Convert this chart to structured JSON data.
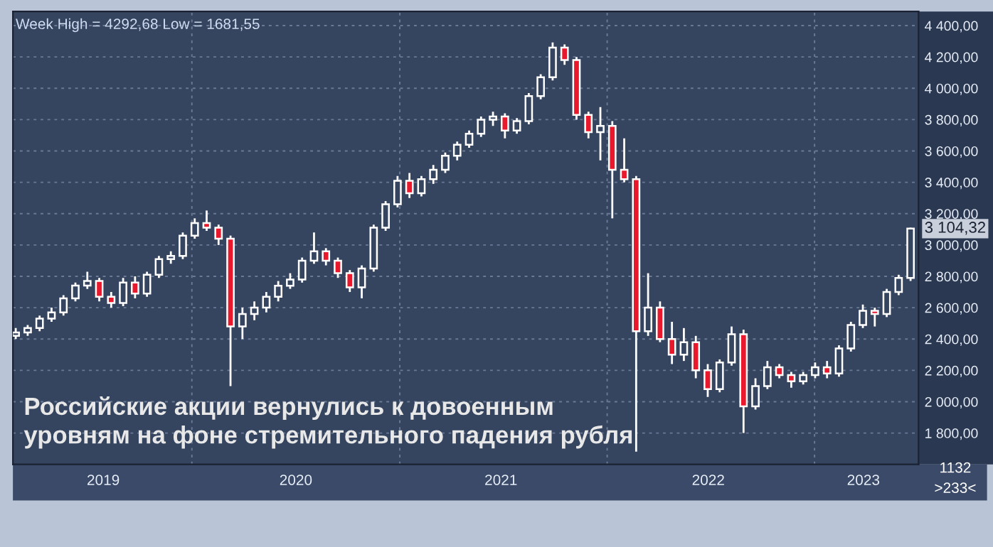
{
  "chart_data": {
    "type": "candlestick",
    "title": "Week High = 4292,68 Low = 1681,55",
    "annotations": [
      "Российские акции вернулись к довоенным уровням на фоне стремительного падения рубля",
      "1132",
      ">233<",
      "3 104,32"
    ],
    "x": [
      "2019-02-25",
      "2019-03-18",
      "2019-04-08",
      "2019-04-29",
      "2019-05-20",
      "2019-06-10",
      "2019-07-01",
      "2019-07-22",
      "2019-08-12",
      "2019-09-02",
      "2019-09-23",
      "2019-10-14",
      "2019-11-04",
      "2019-11-25",
      "2019-12-16",
      "2020-01-06",
      "2020-01-27",
      "2020-02-17",
      "2020-03-09",
      "2020-03-30",
      "2020-04-20",
      "2020-05-11",
      "2020-06-01",
      "2020-06-22",
      "2020-07-13",
      "2020-08-03",
      "2020-08-24",
      "2020-09-14",
      "2020-10-05",
      "2020-10-26",
      "2020-11-16",
      "2020-12-07",
      "2020-12-28",
      "2021-01-18",
      "2021-02-08",
      "2021-03-01",
      "2021-03-22",
      "2021-04-12",
      "2021-05-03",
      "2021-05-24",
      "2021-06-14",
      "2021-07-05",
      "2021-07-26",
      "2021-08-16",
      "2021-09-06",
      "2021-09-27",
      "2021-10-18",
      "2021-11-08",
      "2021-11-29",
      "2021-12-20",
      "2022-01-10",
      "2022-01-31",
      "2022-02-21",
      "2022-03-14",
      "2022-04-04",
      "2022-04-25",
      "2022-05-16",
      "2022-06-06",
      "2022-06-27",
      "2022-07-18",
      "2022-08-08",
      "2022-08-29",
      "2022-09-19",
      "2022-10-10",
      "2022-10-31",
      "2022-11-21",
      "2022-12-12",
      "2023-01-02",
      "2023-01-23",
      "2023-02-13",
      "2023-03-06",
      "2023-03-27",
      "2023-04-17",
      "2023-05-08",
      "2023-05-29",
      "2023-06-19"
    ],
    "ohlc": [
      [
        2420,
        2470,
        2400,
        2442
      ],
      [
        2442,
        2490,
        2420,
        2470
      ],
      [
        2470,
        2550,
        2450,
        2530
      ],
      [
        2530,
        2600,
        2510,
        2570
      ],
      [
        2570,
        2680,
        2550,
        2660
      ],
      [
        2660,
        2760,
        2640,
        2741
      ],
      [
        2741,
        2830,
        2720,
        2770
      ],
      [
        2770,
        2790,
        2640,
        2670
      ],
      [
        2670,
        2700,
        2600,
        2630
      ],
      [
        2630,
        2790,
        2610,
        2760
      ],
      [
        2760,
        2800,
        2660,
        2690
      ],
      [
        2690,
        2830,
        2670,
        2810
      ],
      [
        2810,
        2930,
        2790,
        2910
      ],
      [
        2910,
        2960,
        2880,
        2930
      ],
      [
        2930,
        3080,
        2910,
        3060
      ],
      [
        3060,
        3170,
        3040,
        3140
      ],
      [
        3140,
        3220,
        3090,
        3110
      ],
      [
        3110,
        3130,
        3000,
        3040
      ],
      [
        3040,
        3060,
        2100,
        2480
      ],
      [
        2480,
        2600,
        2400,
        2560
      ],
      [
        2560,
        2640,
        2520,
        2600
      ],
      [
        2600,
        2700,
        2570,
        2670
      ],
      [
        2670,
        2770,
        2640,
        2740
      ],
      [
        2740,
        2820,
        2720,
        2780
      ],
      [
        2780,
        2920,
        2760,
        2900
      ],
      [
        2900,
        3080,
        2880,
        2960
      ],
      [
        2960,
        2980,
        2870,
        2900
      ],
      [
        2900,
        2920,
        2790,
        2820
      ],
      [
        2820,
        2840,
        2700,
        2730
      ],
      [
        2730,
        2870,
        2660,
        2850
      ],
      [
        2850,
        3130,
        2830,
        3110
      ],
      [
        3110,
        3280,
        3090,
        3260
      ],
      [
        3260,
        3440,
        3240,
        3410
      ],
      [
        3410,
        3460,
        3300,
        3330
      ],
      [
        3330,
        3440,
        3310,
        3420
      ],
      [
        3420,
        3510,
        3390,
        3480
      ],
      [
        3480,
        3590,
        3460,
        3570
      ],
      [
        3570,
        3660,
        3540,
        3640
      ],
      [
        3640,
        3730,
        3620,
        3710
      ],
      [
        3710,
        3820,
        3690,
        3800
      ],
      [
        3800,
        3850,
        3760,
        3820
      ],
      [
        3820,
        3840,
        3680,
        3730
      ],
      [
        3730,
        3810,
        3710,
        3790
      ],
      [
        3790,
        3970,
        3770,
        3950
      ],
      [
        3950,
        4090,
        3930,
        4070
      ],
      [
        4070,
        4292.68,
        4050,
        4260
      ],
      [
        4260,
        4280,
        4150,
        4180
      ],
      [
        4180,
        4200,
        3800,
        3830
      ],
      [
        3830,
        3850,
        3680,
        3720
      ],
      [
        3720,
        3880,
        3540,
        3760
      ],
      [
        3760,
        3790,
        3170,
        3480
      ],
      [
        3480,
        3680,
        3400,
        3420
      ],
      [
        3420,
        3440,
        1681.55,
        2450
      ],
      [
        2450,
        2820,
        2420,
        2600
      ],
      [
        2600,
        2640,
        2380,
        2400
      ],
      [
        2400,
        2510,
        2240,
        2300
      ],
      [
        2300,
        2470,
        2260,
        2380
      ],
      [
        2380,
        2420,
        2150,
        2200
      ],
      [
        2200,
        2240,
        2030,
        2080
      ],
      [
        2080,
        2270,
        2060,
        2250
      ],
      [
        2250,
        2480,
        2230,
        2430
      ],
      [
        2430,
        2460,
        1800,
        1970
      ],
      [
        1970,
        2150,
        1950,
        2100
      ],
      [
        2100,
        2260,
        2080,
        2220
      ],
      [
        2220,
        2240,
        2150,
        2170
      ],
      [
        2170,
        2190,
        2090,
        2130
      ],
      [
        2130,
        2190,
        2110,
        2170
      ],
      [
        2170,
        2250,
        2150,
        2220
      ],
      [
        2220,
        2260,
        2150,
        2180
      ],
      [
        2180,
        2360,
        2160,
        2340
      ],
      [
        2340,
        2510,
        2320,
        2490
      ],
      [
        2490,
        2620,
        2470,
        2580
      ],
      [
        2580,
        2600,
        2480,
        2560
      ],
      [
        2560,
        2720,
        2540,
        2700
      ],
      [
        2700,
        2810,
        2680,
        2790
      ],
      [
        2790,
        3110,
        2770,
        3104.32
      ]
    ],
    "xlim": [
      "2019-02-20",
      "2023-07-03"
    ],
    "xticks": [
      {
        "value": "2019-07-29",
        "label": "2019"
      },
      {
        "value": "2020-01-01",
        "label": null
      },
      {
        "value": "2020-07-02",
        "label": "2020"
      },
      {
        "value": "2021-01-01",
        "label": null
      },
      {
        "value": "2021-06-28",
        "label": "2021"
      },
      {
        "value": "2022-01-01",
        "label": null
      },
      {
        "value": "2022-06-28",
        "label": "2022"
      },
      {
        "value": "2023-01-01",
        "label": null
      },
      {
        "value": "2023-03-28",
        "label": "2023"
      }
    ],
    "ylim": [
      1600,
      4490
    ],
    "yticks": [
      {
        "value": 1800,
        "label": "1 800,00"
      },
      {
        "value": 2000,
        "label": "2 000,00"
      },
      {
        "value": 2200,
        "label": "2 200,00"
      },
      {
        "value": 2400,
        "label": "2 400,00"
      },
      {
        "value": 2600,
        "label": "2 600,00"
      },
      {
        "value": 2800,
        "label": "2 800,00"
      },
      {
        "value": 3000,
        "label": "3 000,00"
      },
      {
        "value": 3200,
        "label": "3 200,00"
      },
      {
        "value": 3400,
        "label": "3 400,00"
      },
      {
        "value": 3600,
        "label": "3 600,00"
      },
      {
        "value": 3800,
        "label": "3 800,00"
      },
      {
        "value": 4000,
        "label": "4 000,00"
      },
      {
        "value": 4200,
        "label": "4 200,00"
      },
      {
        "value": 4400,
        "label": "4 400,00"
      }
    ],
    "grid": true
  }
}
